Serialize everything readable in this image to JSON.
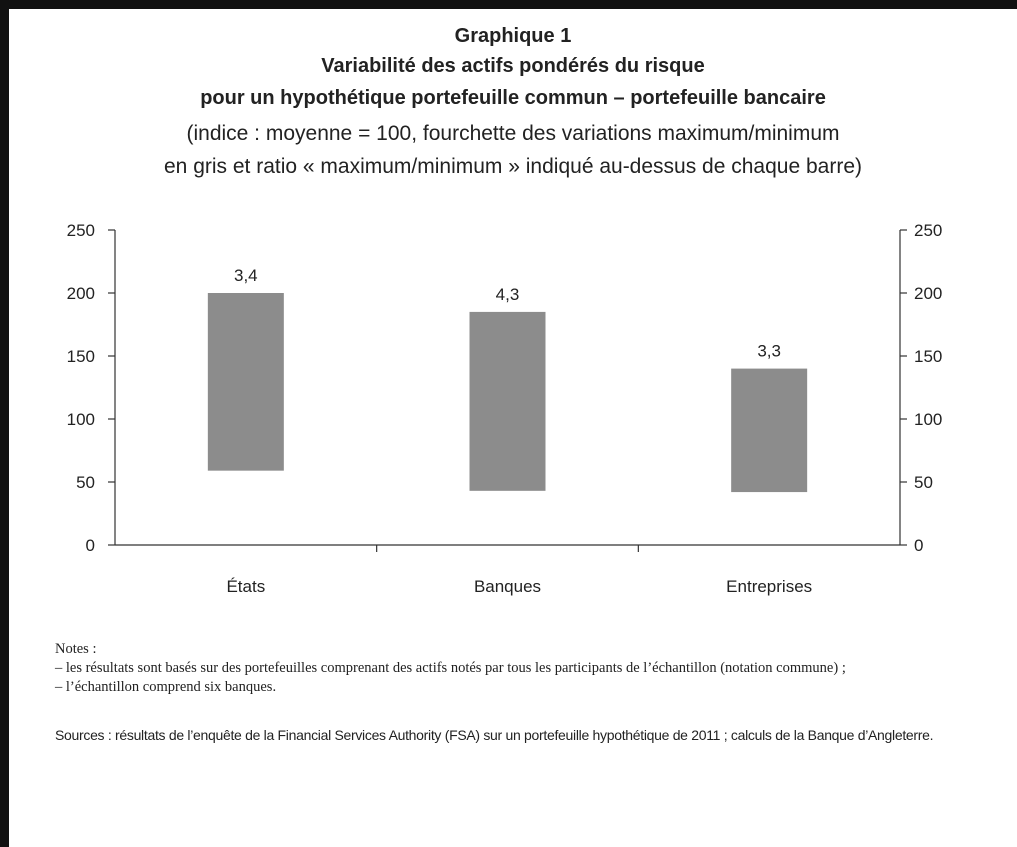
{
  "chart_data": {
    "type": "range_bar",
    "label": "Graphique 1",
    "title": [
      "Variabilité des actifs pondérés du risque",
      "pour un hypothétique portefeuille commun – portefeuille bancaire"
    ],
    "subtitle": [
      "(indice : moyenne = 100, fourchette des variations maximum/minimum",
      "en gris et ratio « maximum/minimum » indiqué au-dessus de chaque barre)"
    ],
    "categories": [
      "États",
      "Banques",
      "Entreprises"
    ],
    "low": [
      59,
      43,
      42
    ],
    "high": [
      200,
      185,
      140
    ],
    "annotations": [
      "3,4",
      "4,3",
      "3,3"
    ],
    "color": "#8c8c8c",
    "ylim": [
      0,
      250
    ],
    "yticks": [
      0,
      50,
      100,
      150,
      200,
      250
    ],
    "y2lim": [
      0,
      250
    ],
    "y2ticks": [
      0,
      50,
      100,
      150,
      200,
      250
    ]
  },
  "notes": {
    "heading": "Notes :",
    "items": [
      "– les résultats sont basés sur des portefeuilles comprenant des actifs notés par tous les participants de l’échantillon (notation commune) ;",
      "– l’échantillon comprend six banques."
    ]
  },
  "sources": "Sources : résultats de l’enquête de la Financial Services Authority (FSA) sur un portefeuille hypothétique de 2011 ; calculs de la Banque d’Angleterre."
}
